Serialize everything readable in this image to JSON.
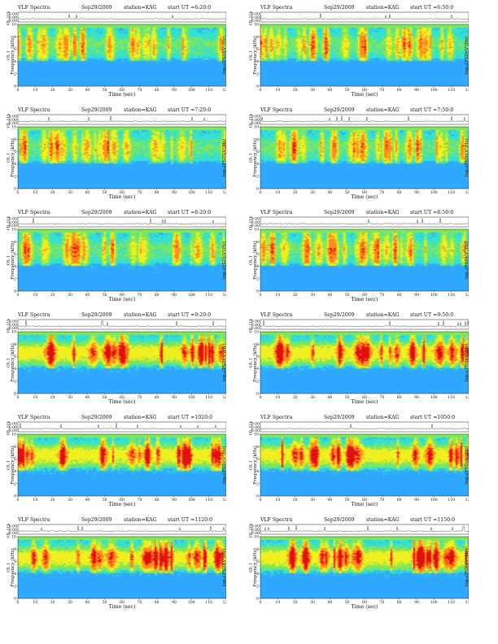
{
  "figure": {
    "panels": [
      {
        "title": "VLF Spectra",
        "date": "Sep29/2009",
        "station": "station=KAG",
        "start": "start  UT =6:20:0"
      },
      {
        "title": "VLF Spectra",
        "date": "Sep29/2009",
        "station": "station=KAG",
        "start": "start  UT =6:50:0"
      },
      {
        "title": "VLF Spectra",
        "date": "Sep29/2009",
        "station": "station=KAG",
        "start": "start  UT =7:20:0"
      },
      {
        "title": "VLF Spectra",
        "date": "Sep29/2009",
        "station": "station=KAG",
        "start": "start  UT =7:50:0"
      },
      {
        "title": "VLF Spectra",
        "date": "Sep29/2009",
        "station": "station=KAG",
        "start": "start  UT =8:20:0"
      },
      {
        "title": "VLF Spectra",
        "date": "Sep29/2009",
        "station": "station=KAG",
        "start": "start  UT =8:50:0"
      },
      {
        "title": "VLF Spectra",
        "date": "Sep29/2009",
        "station": "station=KAG",
        "start": "start  UT =9:20:0"
      },
      {
        "title": "VLF Spectra",
        "date": "Sep29/2009",
        "station": "station=KAG",
        "start": "start  UT =9:50:0"
      },
      {
        "title": "VLF Spectra",
        "date": "Sep29/2009",
        "station": "station=KAG",
        "start": "start  UT =1020:0"
      },
      {
        "title": "VLF Spectra",
        "date": "Sep29/2009",
        "station": "station=KAG",
        "start": "start  UT =1050:0"
      },
      {
        "title": "VLF Spectra",
        "date": "Sep29/2009",
        "station": "station=KAG",
        "start": "start  UT =1120:0"
      },
      {
        "title": "VLF Spectra",
        "date": "Sep29/2009",
        "station": "station=KAG",
        "start": "start  UT =1150:0"
      }
    ]
  },
  "chart_data": {
    "type": "heatmap",
    "panel_count": 12,
    "xlabel": "Time  (sec)",
    "xlim": [
      0,
      120
    ],
    "x_ticks": [
      "0",
      "10",
      "20",
      "30",
      "40",
      "50",
      "60",
      "70",
      "80",
      "90",
      "100",
      "110",
      "120"
    ],
    "waveform_ylabel": "ch.1(V)",
    "waveform_ticks": [
      "0.00",
      "0.00",
      "0.00"
    ],
    "spectrogram_ylabel_channel": "ch.1",
    "spectrogram_ylabel": "Frequency  (kHz)",
    "ylim": [
      0,
      10
    ],
    "y_ticks": [
      "0",
      "2",
      "4",
      "6",
      "8",
      "10"
    ],
    "colorbar_label": "log₁₀(PSD)(V²/Hz)",
    "colorbar_colors": [
      "#1a1aa8",
      "#2fa8ff",
      "#34e0d0",
      "#7ee85a",
      "#f0f020",
      "#ff8a1e",
      "#e01010"
    ],
    "colorbar_ticks": [
      "-",
      "-",
      "-"
    ],
    "grid": false,
    "layout": "6 rows x 2 columns"
  }
}
